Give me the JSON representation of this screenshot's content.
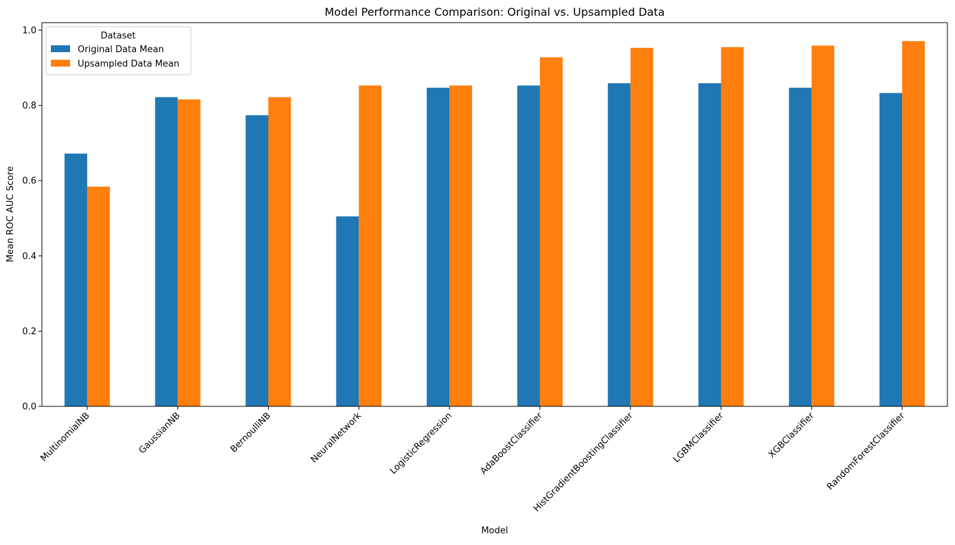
{
  "chart_data": {
    "type": "bar",
    "title": "Model Performance Comparison: Original vs. Upsampled Data",
    "xlabel": "Model",
    "ylabel": "Mean ROC AUC Score",
    "ylim": [
      0,
      1.02
    ],
    "yticks": [
      0.0,
      0.2,
      0.4,
      0.6,
      0.8,
      1.0
    ],
    "ytick_labels": [
      "0.0",
      "0.2",
      "0.4",
      "0.6",
      "0.8",
      "1.0"
    ],
    "grid": false,
    "legend": {
      "title": "Dataset",
      "placement": "top-left"
    },
    "categories": [
      "MultinomialNB",
      "GaussianNB",
      "BernoulliNB",
      "NeuralNetwork",
      "LogisticRegression",
      "AdaBoostClassifier",
      "HistGradientBoostingClassifier",
      "LGBMClassifier",
      "XGBClassifier",
      "RandomForestClassifier"
    ],
    "series": [
      {
        "name": "Original Data Mean",
        "color": "#1f77b4",
        "values": [
          0.672,
          0.822,
          0.774,
          0.505,
          0.847,
          0.853,
          0.859,
          0.859,
          0.847,
          0.833
        ]
      },
      {
        "name": "Upsampled Data Mean",
        "color": "#ff7f0e",
        "values": [
          0.584,
          0.816,
          0.822,
          0.853,
          0.853,
          0.928,
          0.953,
          0.955,
          0.959,
          0.971
        ]
      }
    ]
  }
}
